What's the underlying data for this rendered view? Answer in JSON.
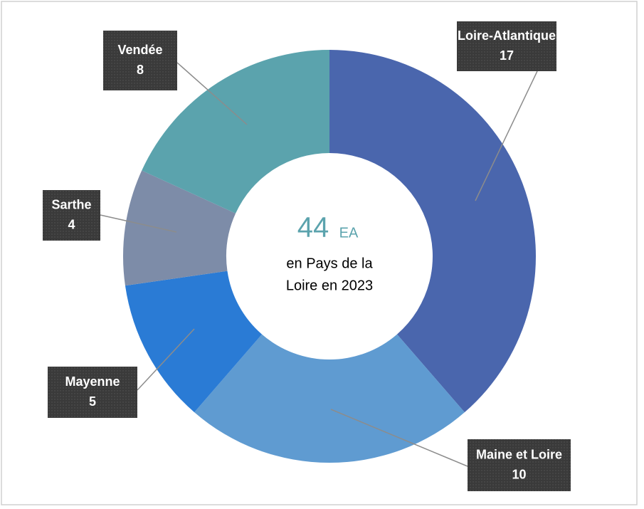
{
  "chart_data": {
    "type": "donut",
    "categories": [
      "Loire-Atlantique",
      "Maine et Loire",
      "Mayenne",
      "Sarthe",
      "Vendée"
    ],
    "values": [
      17,
      10,
      5,
      4,
      8
    ],
    "colors": [
      "#4a66ad",
      "#5f9bd1",
      "#2a7bd5",
      "#7d8ca8",
      "#5ba3ad"
    ],
    "center_value": 44,
    "center_unit": "EA",
    "center_lines": [
      "en Pays de la",
      "Loire en 2023"
    ]
  }
}
